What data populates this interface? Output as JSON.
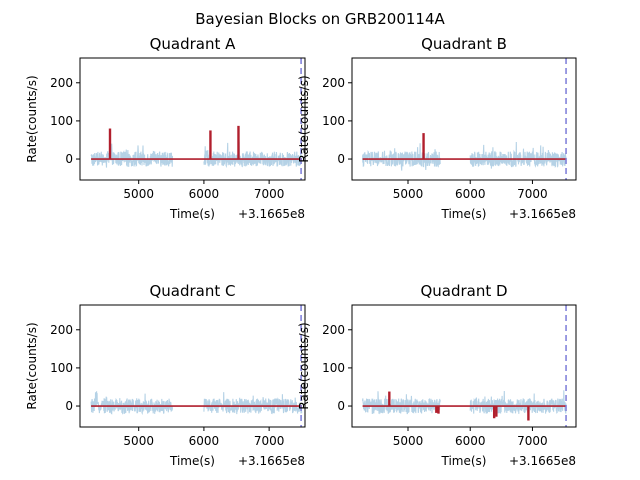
{
  "figure": {
    "suptitle": "Bayesian Blocks on GRB200114A"
  },
  "colors": {
    "noise": "#b5d2e6",
    "blocks": "#b11f2d",
    "trigger": "#7b7bd9",
    "axis": "#000000"
  },
  "chart_data": [
    {
      "type": "line",
      "title": "Quadrant A",
      "xlabel": "Time(s)",
      "ylabel": "Rate(counts/s)",
      "offset_label": "+3.1665e8",
      "xlim": [
        4100,
        7550
      ],
      "ylim": [
        -55,
        265
      ],
      "xticks": [
        5000,
        6000,
        7000
      ],
      "yticks": [
        0,
        100,
        200
      ],
      "grid": false,
      "segments": [
        [
          4270,
          5520
        ],
        [
          6000,
          7500
        ]
      ],
      "noise_amplitude": 25,
      "trigger_time": 7490,
      "series": [
        {
          "role": "lightcurve",
          "x_range": [
            4270,
            7500
          ]
        },
        {
          "role": "bayesian-blocks",
          "baseline": 0,
          "spikes": [
            {
              "x": 4560,
              "y": 80
            },
            {
              "x": 6100,
              "y": 75
            },
            {
              "x": 6530,
              "y": 87
            }
          ]
        }
      ]
    },
    {
      "type": "line",
      "title": "Quadrant B",
      "xlabel": "Time(s)",
      "ylabel": "Rate(counts/s)",
      "offset_label": "+3.1665e8",
      "xlim": [
        4100,
        7700
      ],
      "ylim": [
        -55,
        265
      ],
      "xticks": [
        5000,
        6000,
        7000
      ],
      "yticks": [
        0,
        100,
        200
      ],
      "grid": false,
      "segments": [
        [
          4270,
          5520
        ],
        [
          6000,
          7540
        ]
      ],
      "noise_amplitude": 25,
      "trigger_time": 7540,
      "series": [
        {
          "role": "lightcurve",
          "x_range": [
            4270,
            7540
          ]
        },
        {
          "role": "bayesian-blocks",
          "baseline": 0,
          "spikes": [
            {
              "x": 5250,
              "y": 68
            }
          ]
        }
      ]
    },
    {
      "type": "line",
      "title": "Quadrant C",
      "xlabel": "Time(s)",
      "ylabel": "Rate(counts/s)",
      "offset_label": "+3.1665e8",
      "xlim": [
        4100,
        7550
      ],
      "ylim": [
        -55,
        265
      ],
      "xticks": [
        5000,
        6000,
        7000
      ],
      "yticks": [
        0,
        100,
        200
      ],
      "grid": false,
      "segments": [
        [
          4270,
          5520
        ],
        [
          6000,
          7500
        ]
      ],
      "noise_amplitude": 25,
      "trigger_time": 7490,
      "series": [
        {
          "role": "lightcurve",
          "x_range": [
            4270,
            7500
          ]
        },
        {
          "role": "bayesian-blocks",
          "baseline": 0,
          "spikes": []
        }
      ]
    },
    {
      "type": "line",
      "title": "Quadrant D",
      "xlabel": "Time(s)",
      "ylabel": "Rate(counts/s)",
      "offset_label": "+3.1665e8",
      "xlim": [
        4100,
        7700
      ],
      "ylim": [
        -55,
        265
      ],
      "xticks": [
        5000,
        6000,
        7000
      ],
      "yticks": [
        0,
        100,
        200
      ],
      "grid": false,
      "segments": [
        [
          4270,
          5520
        ],
        [
          6000,
          7540
        ]
      ],
      "noise_amplitude": 25,
      "trigger_time": 7540,
      "series": [
        {
          "role": "lightcurve",
          "x_range": [
            4270,
            7540
          ]
        },
        {
          "role": "bayesian-blocks",
          "baseline": 0,
          "spikes": [
            {
              "x": 4700,
              "y": 38
            },
            {
              "x": 5455,
              "y": -18
            },
            {
              "x": 5490,
              "y": -20
            },
            {
              "x": 6385,
              "y": -32
            },
            {
              "x": 6420,
              "y": -28
            },
            {
              "x": 6935,
              "y": -38
            }
          ]
        }
      ]
    }
  ]
}
